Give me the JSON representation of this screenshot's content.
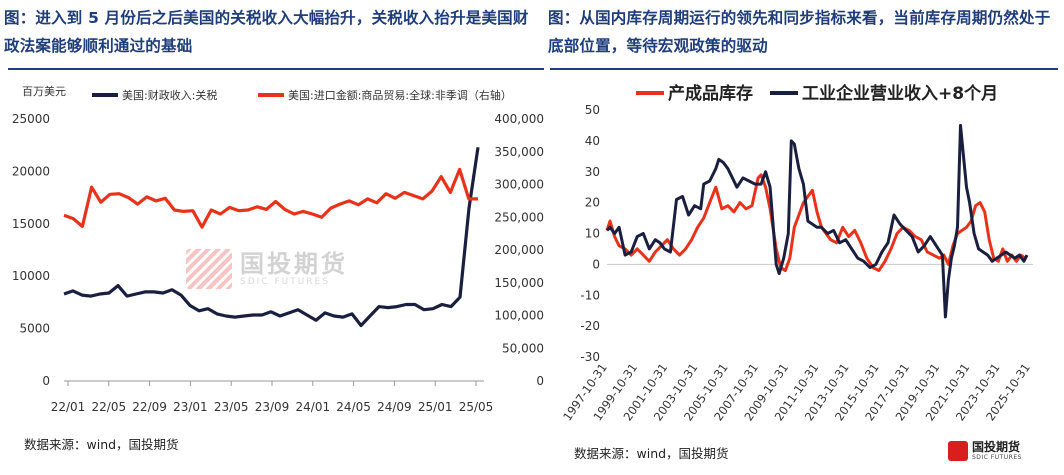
{
  "left_title": "图：进入到 5 月份后之后美国的关税收入大幅抬升，关税收入抬升是美国财政法案能够顺利通过的基础",
  "right_title": "图：从国内库存周期运行的领先和同步指标来看，当前库存周期仍然处于底部位置，等待宏观政策的驱动",
  "left_source": "数据来源：wind，国投期货",
  "right_source": "数据来源：wind，国投期货",
  "watermark": {
    "cn": "国投期货",
    "en": "SDIC FUTURES"
  },
  "brand": {
    "cn": "国投期货",
    "en": "SDIC FUTURES"
  },
  "colors": {
    "navy": "#1b1f3f",
    "red": "#e8321a",
    "title": "#1f3d7a"
  },
  "chart_data": [
    {
      "type": "line",
      "title": "",
      "ylabel": "百万美元",
      "ylabel_right": "",
      "x_tick_labels": [
        "22/01",
        "22/05",
        "22/09",
        "23/01",
        "23/05",
        "23/09",
        "24/01",
        "24/05",
        "24/09",
        "25/01",
        "25/05"
      ],
      "ylim": [
        0,
        25000
      ],
      "yticks": [
        "0",
        "5000",
        "10000",
        "15000",
        "20000",
        "25000"
      ],
      "ylim_right": [
        0,
        400000
      ],
      "yticks_right": [
        "0",
        "50,000",
        "100,000",
        "150,000",
        "200,000",
        "250,000",
        "300,000",
        "350,000",
        "400,000"
      ],
      "legend": [
        "美国:财政收入:关税",
        "美国:进口金额:商品贸易:全球:非季调（右轴）"
      ],
      "series": [
        {
          "name": "美国:财政收入:关税",
          "axis": "left",
          "color": "#1b1f3f",
          "values": [
            8300,
            8600,
            8200,
            8100,
            8300,
            8400,
            9100,
            8100,
            8300,
            8500,
            8500,
            8400,
            8700,
            8200,
            7200,
            6700,
            6900,
            6400,
            6200,
            6100,
            6200,
            6300,
            6300,
            6600,
            6200,
            6500,
            6800,
            6300,
            5800,
            6500,
            6200,
            6100,
            6400,
            5300,
            6200,
            7100,
            7000,
            7100,
            7300,
            7300,
            6800,
            6900,
            7300,
            7100,
            8000,
            16500,
            22300
          ]
        },
        {
          "name": "美国:进口金额:商品贸易:全球:非季调（右轴）",
          "axis": "right",
          "color": "#e8321a",
          "values": [
            253000,
            248000,
            236000,
            296000,
            273000,
            285000,
            286000,
            280000,
            270000,
            281000,
            275000,
            279000,
            261000,
            259000,
            260000,
            235000,
            261000,
            255000,
            265000,
            260000,
            261000,
            266000,
            262000,
            274000,
            262000,
            255000,
            259000,
            255000,
            250000,
            264000,
            270000,
            275000,
            269000,
            278000,
            272000,
            286000,
            279000,
            288000,
            283000,
            278000,
            290000,
            312000,
            288000,
            323000,
            278000,
            278000
          ]
        }
      ]
    },
    {
      "type": "line",
      "title": "",
      "x_tick_labels": [
        "1997-10-31",
        "1999-10-31",
        "2001-10-31",
        "2003-10-31",
        "2005-10-31",
        "2007-10-31",
        "2009-10-31",
        "2011-10-31",
        "2013-10-31",
        "2015-10-31",
        "2017-10-31",
        "2019-10-31",
        "2021-10-31",
        "2023-10-31",
        "2025-10-31"
      ],
      "ylim": [
        -30,
        50
      ],
      "yticks": [
        "-30",
        "-20",
        "-10",
        "0",
        "10",
        "20",
        "30",
        "40",
        "50"
      ],
      "legend": [
        "产成品库存",
        "工业企业营业收入+8个月"
      ],
      "series": [
        {
          "name": "产成品库存",
          "color": "#e8321a",
          "x": [
            1997.8,
            1998.0,
            1998.3,
            1998.6,
            1999.0,
            1999.4,
            1999.8,
            2000.2,
            2000.6,
            2001.0,
            2001.4,
            2001.8,
            2002.2,
            2002.6,
            2003.0,
            2003.4,
            2003.8,
            2004.2,
            2004.6,
            2005.0,
            2005.4,
            2005.8,
            2006.2,
            2006.6,
            2007.0,
            2007.4,
            2007.8,
            2008.0,
            2008.3,
            2008.6,
            2009.0,
            2009.3,
            2009.6,
            2009.9,
            2010.2,
            2010.5,
            2010.8,
            2011.1,
            2011.4,
            2011.7,
            2012.0,
            2012.3,
            2012.6,
            2013.0,
            2013.4,
            2013.8,
            2014.2,
            2014.6,
            2015.0,
            2015.4,
            2015.8,
            2016.2,
            2016.6,
            2017.0,
            2017.4,
            2017.8,
            2018.2,
            2018.6,
            2019.0,
            2019.4,
            2019.8,
            2020.1,
            2020.4,
            2020.7,
            2021.0,
            2021.3,
            2021.6,
            2021.9,
            2022.2,
            2022.5,
            2022.8,
            2023.1,
            2023.4,
            2023.7,
            2024.0,
            2024.3,
            2024.6,
            2024.9,
            2025.2,
            2025.5
          ],
          "values": [
            11,
            14,
            9,
            6,
            5,
            3,
            5,
            3,
            1,
            4,
            6,
            8,
            5,
            3,
            5,
            8,
            12,
            15,
            20,
            25,
            18,
            19,
            17,
            20,
            18,
            19,
            28,
            29,
            25,
            18,
            5,
            -1,
            -2,
            2,
            12,
            16,
            20,
            22,
            24,
            17,
            12,
            10,
            8,
            7,
            12,
            9,
            11,
            7,
            2,
            -1,
            -2,
            1,
            5,
            10,
            12,
            11,
            9,
            8,
            4,
            3,
            2,
            3,
            0,
            6,
            10,
            11,
            12,
            14,
            19,
            20,
            17,
            8,
            2,
            1,
            5,
            1,
            3,
            1,
            3,
            2
          ]
        },
        {
          "name": "工业企业营业收入+8个月",
          "color": "#1b1f3f",
          "x": [
            1997.8,
            1998.0,
            1998.3,
            1998.6,
            1999.0,
            1999.4,
            1999.8,
            2000.2,
            2000.6,
            2001.0,
            2001.3,
            2001.6,
            2002.0,
            2002.4,
            2002.8,
            2003.2,
            2003.6,
            2004.0,
            2004.2,
            2004.6,
            2005.0,
            2005.2,
            2005.5,
            2005.8,
            2006.1,
            2006.4,
            2006.8,
            2007.2,
            2007.6,
            2008.0,
            2008.3,
            2008.6,
            2009.0,
            2009.2,
            2009.5,
            2009.8,
            2010.0,
            2010.2,
            2010.5,
            2010.8,
            2011.1,
            2011.4,
            2011.7,
            2012.0,
            2012.4,
            2012.8,
            2013.2,
            2013.6,
            2014.0,
            2014.4,
            2014.8,
            2015.2,
            2015.6,
            2016.0,
            2016.4,
            2016.8,
            2017.2,
            2017.6,
            2018.0,
            2018.4,
            2018.8,
            2019.2,
            2019.6,
            2020.0,
            2020.2,
            2020.4,
            2020.6,
            2020.8,
            2021.0,
            2021.2,
            2021.4,
            2021.6,
            2021.8,
            2022.1,
            2022.4,
            2022.7,
            2023.0,
            2023.3,
            2023.6,
            2023.9,
            2024.2,
            2024.5,
            2024.8,
            2025.1,
            2025.4,
            2025.6
          ],
          "values": [
            11,
            12,
            10,
            12,
            3,
            4,
            9,
            10,
            5,
            8,
            7,
            5,
            4,
            21,
            22,
            16,
            19,
            18,
            26,
            27,
            31,
            34,
            33,
            31,
            28,
            25,
            28,
            27,
            26,
            26,
            30,
            25,
            0,
            -3,
            2,
            10,
            40,
            39,
            31,
            26,
            14,
            13,
            12,
            12,
            10,
            11,
            7,
            8,
            5,
            2,
            1,
            -1,
            0,
            4,
            7,
            16,
            13,
            11,
            9,
            4,
            6,
            9,
            6,
            3,
            -17,
            -5,
            2,
            6,
            12,
            45,
            35,
            25,
            20,
            10,
            5,
            4,
            3,
            1,
            2,
            3,
            4,
            3,
            2,
            3,
            1,
            3
          ]
        }
      ]
    }
  ]
}
